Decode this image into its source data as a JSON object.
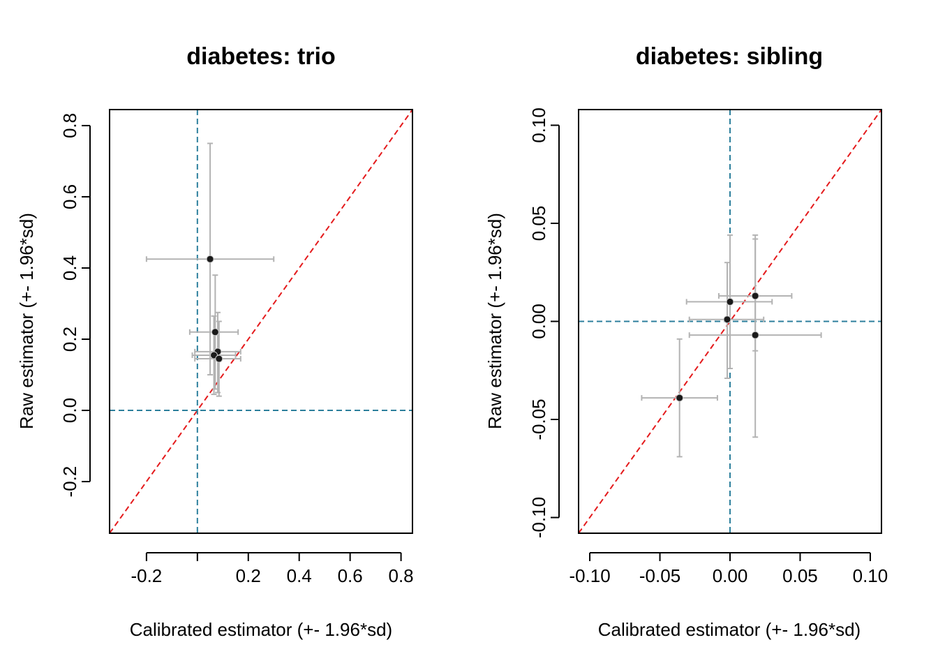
{
  "chart_data": [
    {
      "type": "scatter",
      "title": "diabetes: trio",
      "xlabel": "Calibrated estimator (+- 1.96*sd)",
      "ylabel": "Raw estimator (+- 1.96*sd)",
      "xlim": [
        -0.345,
        0.845
      ],
      "ylim": [
        -0.345,
        0.845
      ],
      "xticks": [
        -0.2,
        0.2,
        0.4,
        0.6,
        0.8
      ],
      "xtick_labels": [
        "-0.2",
        "0.2",
        "0.4",
        "0.6",
        "0.8"
      ],
      "xtick_marks": [
        -0.2,
        0.0,
        0.2,
        0.4,
        0.6,
        0.8
      ],
      "yticks": [
        -0.2,
        0.0,
        0.2,
        0.4,
        0.6,
        0.8
      ],
      "ytick_labels": [
        "-0.2",
        "0.0",
        "0.2",
        "0.4",
        "0.6",
        "0.8"
      ],
      "reference_lines": {
        "diagonal": "y = x",
        "vertical_x": 0.0,
        "horizontal_y": 0.0
      },
      "points": [
        {
          "x": 0.05,
          "y": 0.425,
          "x_low": -0.2,
          "x_high": 0.3,
          "y_low": 0.1,
          "y_high": 0.75
        },
        {
          "x": 0.07,
          "y": 0.22,
          "x_low": -0.03,
          "x_high": 0.16,
          "y_low": 0.06,
          "y_high": 0.38
        },
        {
          "x": 0.08,
          "y": 0.165,
          "x_low": -0.01,
          "x_high": 0.17,
          "y_low": 0.05,
          "y_high": 0.275
        },
        {
          "x": 0.065,
          "y": 0.155,
          "x_low": -0.02,
          "x_high": 0.15,
          "y_low": 0.045,
          "y_high": 0.265
        },
        {
          "x": 0.085,
          "y": 0.145,
          "x_low": -0.01,
          "x_high": 0.17,
          "y_low": 0.04,
          "y_high": 0.25
        }
      ],
      "colors": {
        "diagonal": "#e41a1c",
        "zero_lines": "#2c7f9c",
        "errorbars": "#b3b3b3",
        "points": "#1a1a1a"
      }
    },
    {
      "type": "scatter",
      "title": "diabetes: sibling",
      "xlabel": "Calibrated estimator (+- 1.96*sd)",
      "ylabel": "Raw estimator (+- 1.96*sd)",
      "xlim": [
        -0.108,
        0.108
      ],
      "ylim": [
        -0.108,
        0.108
      ],
      "xticks": [
        -0.1,
        -0.05,
        0.0,
        0.05,
        0.1
      ],
      "xtick_labels": [
        "-0.10",
        "-0.05",
        "0.00",
        "0.05",
        "0.10"
      ],
      "xtick_marks": [
        -0.1,
        -0.05,
        0.0,
        0.05,
        0.1
      ],
      "yticks": [
        -0.1,
        -0.05,
        0.0,
        0.05,
        0.1
      ],
      "ytick_labels": [
        "-0.10",
        "-0.05",
        "0.00",
        "0.05",
        "0.10"
      ],
      "reference_lines": {
        "diagonal": "y = x",
        "vertical_x": 0.0,
        "horizontal_y": 0.0
      },
      "points": [
        {
          "x": -0.036,
          "y": -0.039,
          "x_low": -0.063,
          "x_high": -0.009,
          "y_low": -0.069,
          "y_high": -0.009
        },
        {
          "x": 0.0,
          "y": 0.01,
          "x_low": -0.031,
          "x_high": 0.03,
          "y_low": -0.024,
          "y_high": 0.044
        },
        {
          "x": 0.018,
          "y": 0.013,
          "x_low": -0.008,
          "x_high": 0.044,
          "y_low": -0.015,
          "y_high": 0.044
        },
        {
          "x": -0.002,
          "y": 0.001,
          "x_low": -0.029,
          "x_high": 0.024,
          "y_low": -0.029,
          "y_high": 0.03
        },
        {
          "x": 0.018,
          "y": -0.007,
          "x_low": -0.029,
          "x_high": 0.065,
          "y_low": -0.059,
          "y_high": 0.042
        }
      ],
      "colors": {
        "diagonal": "#e41a1c",
        "zero_lines": "#2c7f9c",
        "errorbars": "#b3b3b3",
        "points": "#1a1a1a"
      }
    }
  ]
}
